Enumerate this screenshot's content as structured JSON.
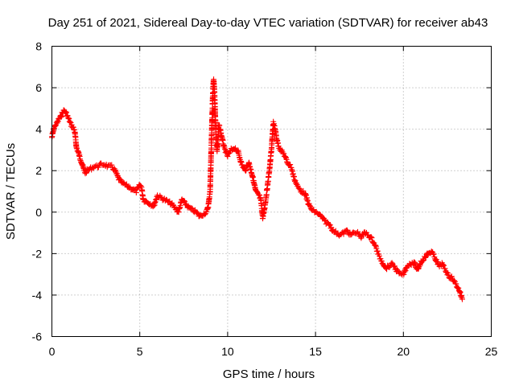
{
  "chart_data": {
    "type": "scatter",
    "title": "Day 251 of 2021, Sidereal Day-to-day VTEC variation (SDTVAR) for receiver ab43",
    "xlabel": "GPS time / hours",
    "ylabel": "SDTVAR / TECUs",
    "xlim": [
      0,
      25
    ],
    "ylim": [
      -6,
      8
    ],
    "xticks": [
      0,
      5,
      10,
      15,
      20,
      25
    ],
    "yticks": [
      -6,
      -4,
      -2,
      0,
      2,
      4,
      6,
      8
    ],
    "grid": true,
    "marker": "+",
    "color": "#ff0000",
    "series": [
      {
        "name": "SDTVAR",
        "x": [
          0.0,
          0.1,
          0.2,
          0.3,
          0.4,
          0.5,
          0.6,
          0.7,
          0.8,
          0.9,
          1.0,
          1.1,
          1.2,
          1.3,
          1.4,
          1.5,
          1.6,
          1.7,
          1.8,
          1.9,
          2.0,
          2.2,
          2.4,
          2.6,
          2.8,
          3.0,
          3.2,
          3.4,
          3.6,
          3.8,
          4.0,
          4.2,
          4.4,
          4.6,
          4.8,
          5.0,
          5.1,
          5.2,
          5.4,
          5.6,
          5.8,
          6.0,
          6.2,
          6.4,
          6.6,
          6.8,
          7.0,
          7.2,
          7.4,
          7.6,
          7.8,
          8.0,
          8.2,
          8.4,
          8.6,
          8.8,
          8.9,
          9.0,
          9.05,
          9.1,
          9.15,
          9.2,
          9.25,
          9.3,
          9.35,
          9.4,
          9.5,
          9.6,
          9.8,
          10.0,
          10.2,
          10.4,
          10.6,
          10.8,
          11.0,
          11.2,
          11.4,
          11.6,
          11.8,
          11.9,
          12.0,
          12.1,
          12.2,
          12.3,
          12.4,
          12.5,
          12.6,
          12.7,
          12.8,
          12.9,
          13.0,
          13.2,
          13.4,
          13.6,
          13.8,
          14.0,
          14.2,
          14.4,
          14.6,
          14.8,
          15.0,
          15.2,
          15.4,
          15.6,
          15.8,
          16.0,
          16.2,
          16.4,
          16.6,
          16.8,
          17.0,
          17.2,
          17.4,
          17.6,
          17.8,
          18.0,
          18.2,
          18.4,
          18.6,
          18.8,
          19.0,
          19.2,
          19.4,
          19.6,
          19.8,
          20.0,
          20.2,
          20.4,
          20.6,
          20.8,
          21.0,
          21.2,
          21.4,
          21.6,
          21.8,
          22.0,
          22.2,
          22.4,
          22.6,
          22.8,
          23.0,
          23.2,
          23.35
        ],
        "y": [
          3.6,
          4.0,
          4.2,
          4.3,
          4.5,
          4.6,
          4.8,
          4.9,
          4.8,
          4.6,
          4.4,
          4.2,
          4.1,
          3.9,
          3.1,
          2.9,
          2.6,
          2.4,
          2.1,
          1.9,
          2.0,
          2.1,
          2.2,
          2.2,
          2.3,
          2.3,
          2.2,
          2.2,
          2.0,
          1.6,
          1.4,
          1.3,
          1.2,
          1.1,
          1.0,
          1.3,
          1.2,
          0.6,
          0.5,
          0.4,
          0.3,
          0.8,
          0.7,
          0.6,
          0.5,
          0.4,
          0.2,
          0.0,
          0.6,
          0.4,
          0.2,
          0.1,
          0.0,
          -0.2,
          -0.1,
          0.0,
          0.3,
          1.0,
          2.5,
          4.0,
          5.5,
          6.4,
          5.8,
          4.5,
          3.5,
          3.0,
          4.2,
          3.9,
          3.1,
          2.7,
          3.0,
          3.1,
          2.9,
          2.3,
          2.0,
          2.4,
          1.8,
          1.0,
          0.8,
          0.5,
          -0.3,
          0.2,
          0.8,
          1.5,
          2.2,
          3.1,
          4.3,
          4.0,
          3.5,
          3.2,
          3.0,
          2.8,
          2.4,
          2.2,
          1.6,
          1.2,
          1.0,
          0.9,
          0.4,
          0.1,
          0.0,
          -0.1,
          -0.3,
          -0.5,
          -0.6,
          -0.9,
          -1.0,
          -1.1,
          -1.0,
          -0.9,
          -1.1,
          -1.0,
          -1.0,
          -1.2,
          -1.0,
          -1.1,
          -1.3,
          -1.6,
          -2.1,
          -2.4,
          -2.7,
          -2.6,
          -2.5,
          -2.8,
          -3.0,
          -3.0,
          -2.6,
          -2.5,
          -2.4,
          -2.8,
          -2.4,
          -2.2,
          -2.0,
          -1.9,
          -2.2,
          -2.6,
          -2.5,
          -2.8,
          -3.1,
          -3.2,
          -3.5,
          -3.8,
          -4.2
        ]
      }
    ]
  }
}
